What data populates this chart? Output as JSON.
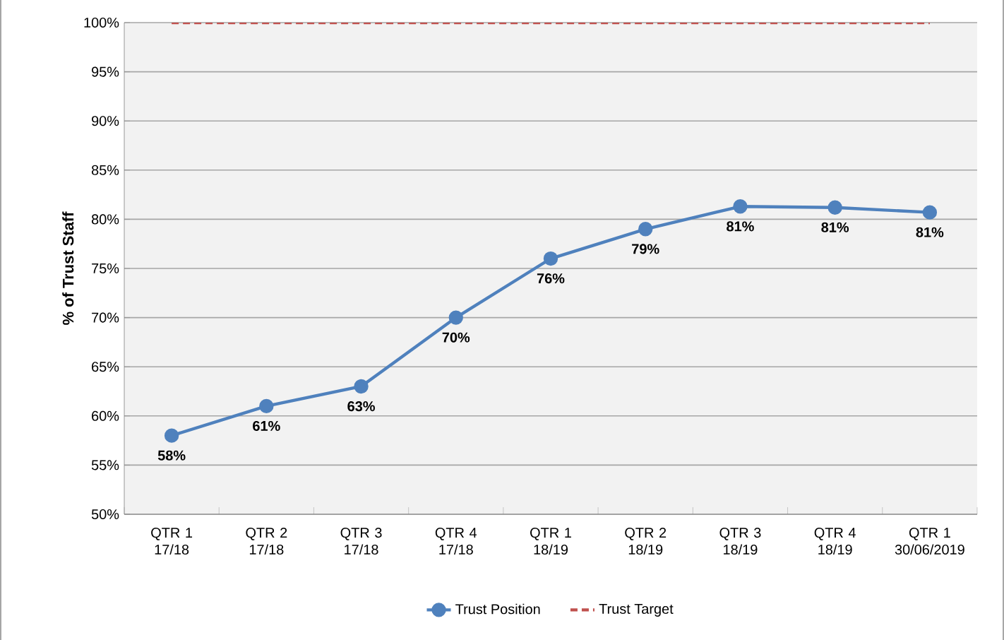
{
  "chart_data": {
    "type": "line",
    "ylabel": "% of Trust Staff",
    "categories": [
      "QTR 1 17/18",
      "QTR 2 17/18",
      "QTR 3 17/18",
      "QTR 4 17/18",
      "QTR 1 18/19",
      "QTR 2 18/19",
      "QTR 3 18/19",
      "QTR 4 18/19",
      "QTR 1 30/06/2019"
    ],
    "series": [
      {
        "name": "Trust Position",
        "color": "#4f81bd",
        "marker": "circle",
        "line_style": "solid",
        "values": [
          58,
          61,
          63,
          70,
          76,
          79,
          81.3,
          81.2,
          80.7
        ],
        "value_labels": [
          "58%",
          "61%",
          "63%",
          "70%",
          "76%",
          "79%",
          "81%",
          "81%",
          "81%"
        ]
      },
      {
        "name": "Trust Target",
        "color": "#c0504d",
        "marker": "none",
        "line_style": "dashed",
        "values": [
          100,
          100,
          100,
          100,
          100,
          100,
          100,
          100,
          100
        ]
      }
    ],
    "ylim": [
      50,
      100
    ],
    "yticks": [
      {
        "value": 50,
        "label": "50%"
      },
      {
        "value": 55,
        "label": "55%"
      },
      {
        "value": 60,
        "label": "60%"
      },
      {
        "value": 65,
        "label": "65%"
      },
      {
        "value": 70,
        "label": "70%"
      },
      {
        "value": 75,
        "label": "75%"
      },
      {
        "value": 80,
        "label": "80%"
      },
      {
        "value": 85,
        "label": "85%"
      },
      {
        "value": 90,
        "label": "90%"
      },
      {
        "value": 95,
        "label": "95%"
      },
      {
        "value": 100,
        "label": "100%"
      }
    ],
    "grid": "y",
    "legend": "bottom"
  }
}
